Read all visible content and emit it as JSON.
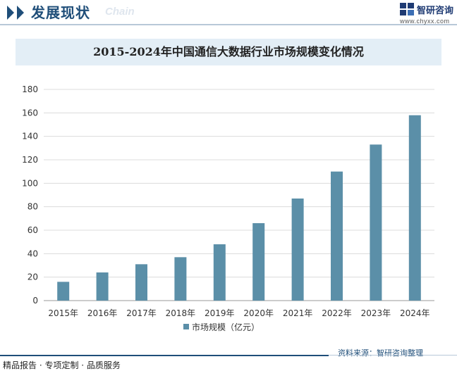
{
  "header": {
    "title": "发展现状",
    "subtitle": "Chain",
    "logo_name": "智研咨询",
    "logo_url": "www.chyxx.com"
  },
  "source": "资料来源：智研咨询整理",
  "footer": {
    "left": "精品报告 · 专项定制 · 品质服务"
  },
  "colors": {
    "bar": "#5b8fa8",
    "accent": "#1f4e79",
    "title_band": "#e3eef6"
  },
  "chart_data": {
    "type": "bar",
    "title": "2015-2024年中国通信大数据行业市场规模变化情况",
    "categories": [
      "2015年",
      "2016年",
      "2017年",
      "2018年",
      "2019年",
      "2020年",
      "2021年",
      "2022年",
      "2023年",
      "2024年"
    ],
    "series": [
      {
        "name": "市场规模（亿元）",
        "values": [
          16,
          24,
          31,
          37,
          48,
          66,
          87,
          110,
          133,
          158
        ]
      }
    ],
    "xlabel": "",
    "ylabel": "",
    "ylim": [
      0,
      180
    ],
    "yticks": [
      0,
      20,
      40,
      60,
      80,
      100,
      120,
      140,
      160,
      180
    ],
    "grid": true,
    "legend": "bottom-center"
  }
}
